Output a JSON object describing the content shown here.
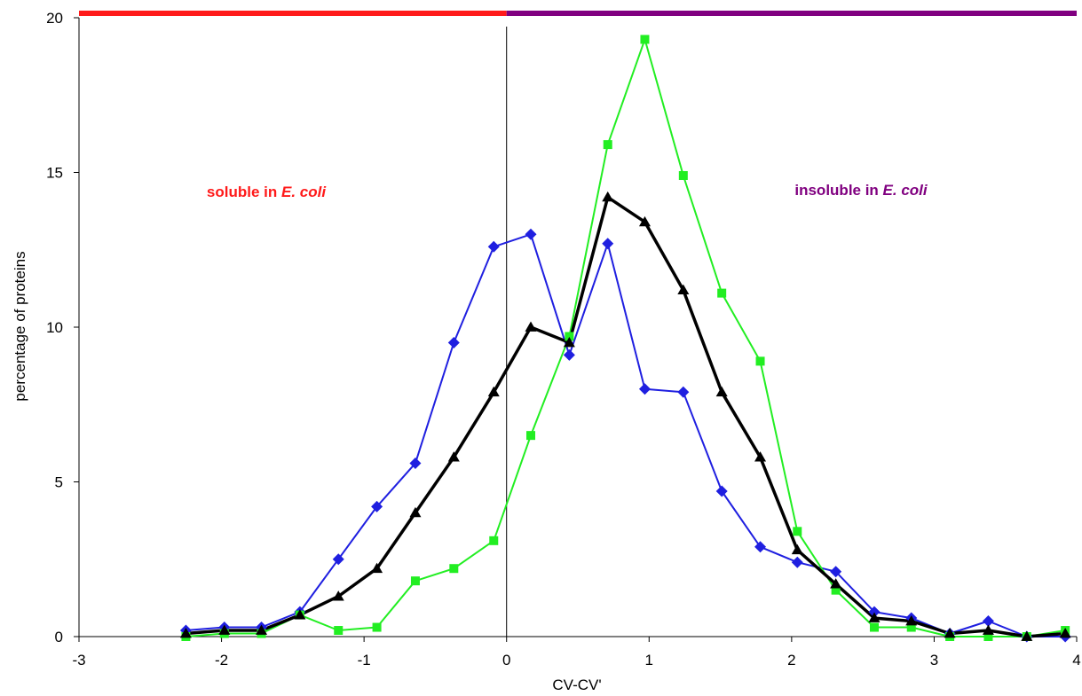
{
  "chart_data": {
    "type": "line",
    "title": "",
    "xlabel": "CV-CV'",
    "ylabel": "percentage of proteins",
    "xlim": [
      -3,
      4
    ],
    "ylim": [
      0,
      20
    ],
    "x_ticks": [
      "-3",
      "-2",
      "-1",
      "0",
      "1",
      "2",
      "3",
      "4"
    ],
    "y_ticks": [
      "0",
      "5",
      "10",
      "15",
      "20"
    ],
    "grid": false,
    "legend": "none",
    "vertical_line_x": 0,
    "regions": [
      {
        "range": [
          -3,
          0
        ],
        "label": "soluble in ",
        "label_italic": "E. coli",
        "color": "#ff1a1a"
      },
      {
        "range": [
          0,
          4
        ],
        "label": "insoluble in ",
        "label_italic": "E. coli",
        "color": "#800080"
      }
    ],
    "x": [
      -2.25,
      -1.98,
      -1.72,
      -1.45,
      -1.18,
      -0.91,
      -0.64,
      -0.37,
      -0.09,
      0.17,
      0.44,
      0.71,
      0.97,
      1.24,
      1.51,
      1.78,
      2.04,
      2.31,
      2.58,
      2.84,
      3.11,
      3.38,
      3.65,
      3.92
    ],
    "series": [
      {
        "color": "#1f1fe0",
        "marker": "diamond",
        "line_width": 2,
        "values": [
          0.2,
          0.3,
          0.3,
          0.8,
          2.5,
          4.2,
          5.6,
          9.5,
          12.6,
          13.0,
          9.1,
          12.7,
          8.0,
          7.9,
          4.7,
          2.9,
          2.4,
          2.1,
          0.8,
          0.6,
          0.1,
          0.5,
          0.0,
          0.0
        ]
      },
      {
        "color": "#22ee22",
        "marker": "square",
        "line_width": 2,
        "values": [
          0.0,
          0.1,
          0.1,
          0.7,
          0.2,
          0.3,
          1.8,
          2.2,
          3.1,
          6.5,
          9.7,
          15.9,
          19.3,
          14.9,
          11.1,
          8.9,
          3.4,
          1.5,
          0.3,
          0.3,
          0.0,
          0.0,
          0.0,
          0.2
        ]
      },
      {
        "color": "#000000",
        "marker": "triangle",
        "line_width": 3.5,
        "values": [
          0.1,
          0.2,
          0.2,
          0.7,
          1.3,
          2.2,
          4.0,
          5.8,
          7.9,
          10.0,
          9.5,
          14.2,
          13.4,
          11.2,
          7.9,
          5.8,
          2.8,
          1.7,
          0.6,
          0.5,
          0.1,
          0.2,
          0.0,
          0.1
        ]
      }
    ]
  }
}
